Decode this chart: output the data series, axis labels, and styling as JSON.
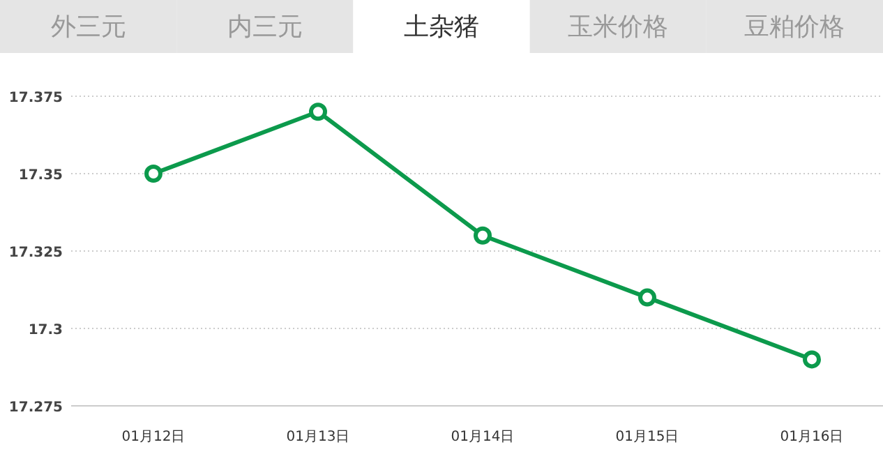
{
  "chart_data": {
    "type": "line",
    "title": "土杂猪",
    "annotations": [
      "外三元",
      "内三元",
      "玉米价格",
      "豆粕价格"
    ],
    "categories": [
      "01月12日",
      "01月13日",
      "01月14日",
      "01月15日",
      "01月16日"
    ],
    "series": [
      {
        "color": "#0c9a4c",
        "values": [
          17.35,
          17.37,
          17.33,
          17.31,
          17.29
        ]
      }
    ],
    "ylim": [
      17.275,
      17.375
    ],
    "yticks": [
      17.275,
      17.3,
      17.325,
      17.35,
      17.375
    ],
    "grid": "y",
    "marker": "circle",
    "line_style": "solid"
  }
}
